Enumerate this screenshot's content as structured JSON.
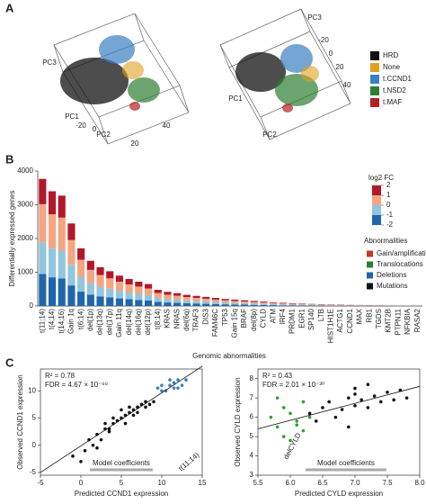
{
  "panel_labels": [
    "A",
    "B",
    "C"
  ],
  "chart_data": [
    {
      "type": "scatter3d",
      "legend": [
        {
          "name": "HRD",
          "color": "#111111"
        },
        {
          "name": "None",
          "color": "#e0a020"
        },
        {
          "name": "t.CCND1",
          "color": "#3a7fc0"
        },
        {
          "name": "t.NSD2",
          "color": "#2e7d32"
        },
        {
          "name": "t.MAF",
          "color": "#b22222"
        }
      ],
      "axis_labels": [
        "PC1",
        "PC2",
        "PC3"
      ],
      "ticks": [
        -20,
        0,
        20,
        40
      ]
    },
    {
      "type": "stacked_bar",
      "ylabel": "Differentially expressed genes",
      "xlabel": "Genomic abnormalities",
      "categories": [
        "t(11;14)",
        "t(4;14)",
        "t(14;16)",
        "Gain 1q",
        "t(6;14)",
        "del(1p)",
        "del(13q)",
        "del(17p)",
        "Gain 11q",
        "del(14q)",
        "del(16q)",
        "del(12p)",
        "t(8;14)",
        "KRAS",
        "NRAS",
        "del(6q)",
        "TRAF3",
        "DIS3",
        "FAM46C",
        "TP53",
        "Gain 15q",
        "BRAF",
        "del(8p)",
        "CYLD",
        "ATM",
        "IRF4",
        "PRDM1",
        "EGR1",
        "SP140",
        "LTB",
        "HIST1H1E",
        "ACTG1",
        "CCND1",
        "MAX",
        "RB1",
        "TGDS",
        "KMT2B",
        "PTPN11",
        "NFKBIA",
        "RASA2"
      ],
      "category_colors": [
        "#2e7d32",
        "#2e7d32",
        "#2e7d32",
        "#c0392b",
        "#2e7d32",
        "#2166ac",
        "#2166ac",
        "#2166ac",
        "#c0392b",
        "#2166ac",
        "#2166ac",
        "#2166ac",
        "#2e7d32",
        "#111111",
        "#111111",
        "#2166ac",
        "#111111",
        "#111111",
        "#111111",
        "#111111",
        "#c0392b",
        "#111111",
        "#2166ac",
        "#111111",
        "#111111",
        "#111111",
        "#111111",
        "#111111",
        "#111111",
        "#111111",
        "#111111",
        "#111111",
        "#111111",
        "#111111",
        "#111111",
        "#111111",
        "#111111",
        "#111111",
        "#111111",
        "#111111"
      ],
      "series": [
        {
          "color": "#2166ac",
          "values": [
            947,
            850,
            820,
            610,
            425,
            335,
            285,
            255,
            225,
            200,
            180,
            160,
            120,
            105,
            95,
            80,
            75,
            65,
            60,
            50,
            45,
            40,
            35,
            30,
            25,
            20,
            20,
            15,
            15,
            10,
            10,
            10,
            10,
            5,
            5,
            5,
            0,
            3,
            2,
            2
          ]
        },
        {
          "color": "#92c5de",
          "values": [
            940,
            850,
            820,
            610,
            430,
            335,
            290,
            255,
            225,
            200,
            180,
            165,
            120,
            105,
            95,
            85,
            75,
            70,
            60,
            55,
            50,
            45,
            40,
            35,
            30,
            25,
            20,
            20,
            15,
            15,
            10,
            10,
            10,
            10,
            5,
            5,
            5,
            3,
            3,
            2
          ]
        },
        {
          "color": "#f4a582",
          "values": [
            1130,
            1020,
            980,
            735,
            515,
            400,
            345,
            310,
            270,
            240,
            215,
            195,
            145,
            125,
            115,
            100,
            90,
            80,
            70,
            65,
            55,
            50,
            45,
            40,
            35,
            30,
            25,
            20,
            20,
            15,
            15,
            10,
            10,
            10,
            10,
            5,
            5,
            4,
            3,
            2
          ]
        },
        {
          "color": "#b2182b",
          "values": [
            750,
            680,
            650,
            490,
            340,
            270,
            230,
            210,
            180,
            160,
            145,
            130,
            95,
            85,
            75,
            65,
            60,
            55,
            50,
            40,
            40,
            35,
            30,
            25,
            20,
            20,
            15,
            15,
            10,
            10,
            10,
            10,
            5,
            5,
            5,
            5,
            5,
            2,
            2,
            2
          ]
        }
      ],
      "ylim": [
        0,
        4000
      ],
      "yticks": [
        0,
        1000,
        2000,
        3000,
        4000
      ],
      "colorbar": {
        "title": "log2 FC",
        "ticks": [
          2,
          1,
          0,
          -1,
          -2
        ]
      },
      "legend_title": "Abnormalities",
      "legend": [
        {
          "name": "Gain/amplification",
          "color": "#c0392b"
        },
        {
          "name": "Translocations",
          "color": "#2e7d32"
        },
        {
          "name": "Deletions",
          "color": "#2166ac"
        },
        {
          "name": "Mutations",
          "color": "#111111"
        }
      ]
    },
    {
      "type": "scatter",
      "xlabel": "Predicted CCND1 expression",
      "ylabel": "Observed CCND1 expression",
      "stats": [
        "R² = 0.78",
        "FDR = 4.67 × 10⁻⁶⁸"
      ],
      "annotation": "t(11;14)",
      "inset_title": "Model coefficients",
      "series": [
        {
          "color": "#111111",
          "x": [
            0.5,
            1,
            1.5,
            2,
            2.5,
            3,
            3,
            3.5,
            4,
            4,
            4.5,
            5,
            5,
            5.5,
            6,
            6,
            6.5,
            7,
            7,
            7.5,
            8,
            8,
            8.5,
            9,
            2,
            3.5,
            5.5,
            6.5,
            -1,
            0
          ],
          "values": [
            -1,
            1,
            0,
            2,
            1,
            3,
            4,
            2.5,
            4,
            5,
            4.5,
            5,
            6.5,
            5.5,
            6,
            7,
            6.5,
            7,
            6,
            7.5,
            7,
            8,
            7.5,
            8,
            -0.5,
            3,
            4,
            5.5,
            -2,
            -3
          ]
        },
        {
          "color": "#3a7fc0",
          "x": [
            9.5,
            10,
            10.5,
            11,
            11,
            11.5,
            12,
            12,
            12.5,
            10,
            11.5,
            13
          ],
          "values": [
            10.5,
            11,
            10,
            11,
            12,
            11.5,
            10.5,
            12,
            11,
            10,
            10.5,
            12
          ]
        }
      ],
      "trend_line": {
        "x": [
          -5,
          15
        ],
        "values": [
          -5,
          14.5
        ]
      },
      "xlim": [
        -5,
        15
      ],
      "xticks": [
        -5,
        0,
        5,
        10,
        15
      ],
      "ylim": [
        -5.5,
        14
      ],
      "yticks": [
        -5,
        0,
        5,
        10
      ]
    },
    {
      "type": "scatter",
      "xlabel": "Predicted CYLD expression",
      "ylabel": "Observed CYLD expression",
      "stats": [
        "R² = 0.43",
        "FDR = 2.01 × 10⁻³⁰"
      ],
      "annotation": "delCYLD",
      "inset_title": "Model coefficients",
      "series": [
        {
          "color": "#111111",
          "x": [
            6.3,
            6.5,
            6.6,
            6.8,
            6.9,
            7,
            7,
            7.1,
            7.2,
            7.3,
            7.4,
            7.5,
            7.6,
            7.7,
            6.7,
            7.0,
            7.2,
            6.4,
            7.8,
            6.9
          ],
          "values": [
            6.2,
            6.5,
            6.8,
            6.4,
            7,
            6.6,
            7.2,
            6.9,
            6.5,
            7.1,
            6.8,
            7.3,
            6.9,
            7.4,
            6,
            7.5,
            7.7,
            5.8,
            7,
            5.5
          ]
        },
        {
          "color": "#2e9e3a",
          "x": [
            5.7,
            5.8,
            5.9,
            5.9,
            6.0,
            6.0,
            6.1,
            6.2,
            6.2,
            6.3,
            5.8,
            6.1
          ],
          "values": [
            6,
            5.5,
            6.5,
            5,
            6.2,
            4.8,
            5.8,
            6.8,
            5.3,
            6,
            7,
            5.6
          ]
        }
      ],
      "trend_line": {
        "x": [
          5.5,
          8
        ],
        "values": [
          5.4,
          7.6
        ]
      },
      "xlim": [
        5.5,
        8
      ],
      "xticks": [
        {
          "value": 5.5,
          "label": "5.5"
        },
        {
          "value": 6,
          "label": "6.0"
        },
        {
          "value": 6.5,
          "label": "6.5"
        },
        {
          "value": 7,
          "label": "7.0"
        },
        {
          "value": 7.5,
          "label": "7.5"
        },
        {
          "value": 8,
          "label": "8.0"
        }
      ],
      "ylim": [
        3,
        8.5
      ],
      "yticks": [
        3,
        4,
        5,
        6,
        7,
        8
      ]
    }
  ]
}
